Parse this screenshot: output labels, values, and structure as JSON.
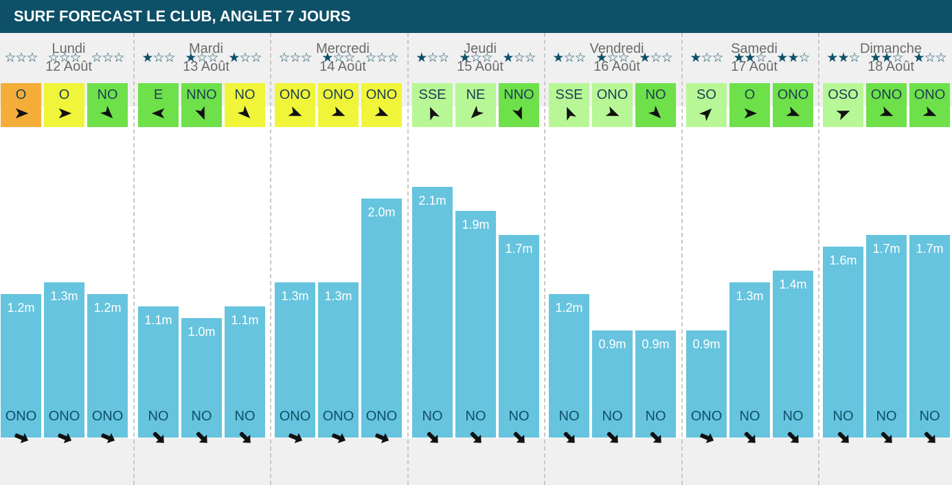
{
  "title": "SURF FORECAST LE CLUB, ANGLET 7 JOURS",
  "colors": {
    "title_bg": "#0d5068",
    "bar": "#66c4de",
    "wind_orange": "#f5ad3a",
    "wind_yellow": "#f0f53a",
    "wind_green": "#6ee04a",
    "wind_light_green": "#b7f796",
    "star": "#0d5068"
  },
  "days": [
    {
      "name": "Lundi",
      "date": "12 Août"
    },
    {
      "name": "Mardi",
      "date": "13 Août"
    },
    {
      "name": "Mercredi",
      "date": "14 Août"
    },
    {
      "name": "Jeudi",
      "date": "15 Août"
    },
    {
      "name": "Vendredi",
      "date": "16 Août"
    },
    {
      "name": "Samedi",
      "date": "17 Août"
    },
    {
      "name": "Dimanche",
      "date": "18 Août"
    }
  ],
  "slots": [
    {
      "stars": 0,
      "wind_dir": "O",
      "wind_color": "wind_orange",
      "wave": 1.2,
      "wave_label": "1.2m",
      "swell_dir": "ONO"
    },
    {
      "stars": 0,
      "wind_dir": "O",
      "wind_color": "wind_yellow",
      "wave": 1.3,
      "wave_label": "1.3m",
      "swell_dir": "ONO"
    },
    {
      "stars": 0,
      "wind_dir": "NO",
      "wind_color": "wind_green",
      "wave": 1.2,
      "wave_label": "1.2m",
      "swell_dir": "ONO"
    },
    {
      "stars": 1,
      "wind_dir": "E",
      "wind_color": "wind_green",
      "wave": 1.1,
      "wave_label": "1.1m",
      "swell_dir": "NO"
    },
    {
      "stars": 1,
      "wind_dir": "NNO",
      "wind_color": "wind_green",
      "wave": 1.0,
      "wave_label": "1.0m",
      "swell_dir": "NO"
    },
    {
      "stars": 1,
      "wind_dir": "NO",
      "wind_color": "wind_yellow",
      "wave": 1.1,
      "wave_label": "1.1m",
      "swell_dir": "NO"
    },
    {
      "stars": 0,
      "wind_dir": "ONO",
      "wind_color": "wind_yellow",
      "wave": 1.3,
      "wave_label": "1.3m",
      "swell_dir": "ONO"
    },
    {
      "stars": 1,
      "wind_dir": "ONO",
      "wind_color": "wind_yellow",
      "wave": 1.3,
      "wave_label": "1.3m",
      "swell_dir": "ONO"
    },
    {
      "stars": 0,
      "wind_dir": "ONO",
      "wind_color": "wind_yellow",
      "wave": 2.0,
      "wave_label": "2.0m",
      "swell_dir": "ONO"
    },
    {
      "stars": 1,
      "wind_dir": "SSE",
      "wind_color": "wind_light_green",
      "wave": 2.1,
      "wave_label": "2.1m",
      "swell_dir": "NO"
    },
    {
      "stars": 1,
      "wind_dir": "NE",
      "wind_color": "wind_light_green",
      "wave": 1.9,
      "wave_label": "1.9m",
      "swell_dir": "NO"
    },
    {
      "stars": 1,
      "wind_dir": "NNO",
      "wind_color": "wind_green",
      "wave": 1.7,
      "wave_label": "1.7m",
      "swell_dir": "NO"
    },
    {
      "stars": 1,
      "wind_dir": "SSE",
      "wind_color": "wind_light_green",
      "wave": 1.2,
      "wave_label": "1.2m",
      "swell_dir": "NO"
    },
    {
      "stars": 1,
      "wind_dir": "ONO",
      "wind_color": "wind_light_green",
      "wave": 0.9,
      "wave_label": "0.9m",
      "swell_dir": "NO"
    },
    {
      "stars": 1,
      "wind_dir": "NO",
      "wind_color": "wind_green",
      "wave": 0.9,
      "wave_label": "0.9m",
      "swell_dir": "NO"
    },
    {
      "stars": 1,
      "wind_dir": "SO",
      "wind_color": "wind_light_green",
      "wave": 0.9,
      "wave_label": "0.9m",
      "swell_dir": "ONO"
    },
    {
      "stars": 2,
      "wind_dir": "O",
      "wind_color": "wind_green",
      "wave": 1.3,
      "wave_label": "1.3m",
      "swell_dir": "NO"
    },
    {
      "stars": 2,
      "wind_dir": "ONO",
      "wind_color": "wind_green",
      "wave": 1.4,
      "wave_label": "1.4m",
      "swell_dir": "NO"
    },
    {
      "stars": 2,
      "wind_dir": "OSO",
      "wind_color": "wind_light_green",
      "wave": 1.6,
      "wave_label": "1.6m",
      "swell_dir": "NO"
    },
    {
      "stars": 2,
      "wind_dir": "ONO",
      "wind_color": "wind_green",
      "wave": 1.7,
      "wave_label": "1.7m",
      "swell_dir": "NO"
    },
    {
      "stars": 1,
      "wind_dir": "ONO",
      "wind_color": "wind_green",
      "wave": 1.7,
      "wave_label": "1.7m",
      "swell_dir": "NO"
    }
  ],
  "chart_data": {
    "type": "bar",
    "title": "SURF FORECAST LE CLUB, ANGLET 7 JOURS",
    "categories": [
      "Lundi 12 Août",
      "Lundi 12 Août",
      "Lundi 12 Août",
      "Mardi 13 Août",
      "Mardi 13 Août",
      "Mardi 13 Août",
      "Mercredi 14 Août",
      "Mercredi 14 Août",
      "Mercredi 14 Août",
      "Jeudi 15 Août",
      "Jeudi 15 Août",
      "Jeudi 15 Août",
      "Vendredi 16 Août",
      "Vendredi 16 Août",
      "Vendredi 16 Août",
      "Samedi 17 Août",
      "Samedi 17 Août",
      "Samedi 17 Août",
      "Dimanche 18 Août",
      "Dimanche 18 Août",
      "Dimanche 18 Août"
    ],
    "values": [
      1.2,
      1.3,
      1.2,
      1.1,
      1.0,
      1.1,
      1.3,
      1.3,
      2.0,
      2.1,
      1.9,
      1.7,
      1.2,
      0.9,
      0.9,
      0.9,
      1.3,
      1.4,
      1.6,
      1.7,
      1.7
    ],
    "xlabel": "",
    "ylabel": "",
    "ylim": [
      0,
      2.1
    ],
    "grid": false
  }
}
